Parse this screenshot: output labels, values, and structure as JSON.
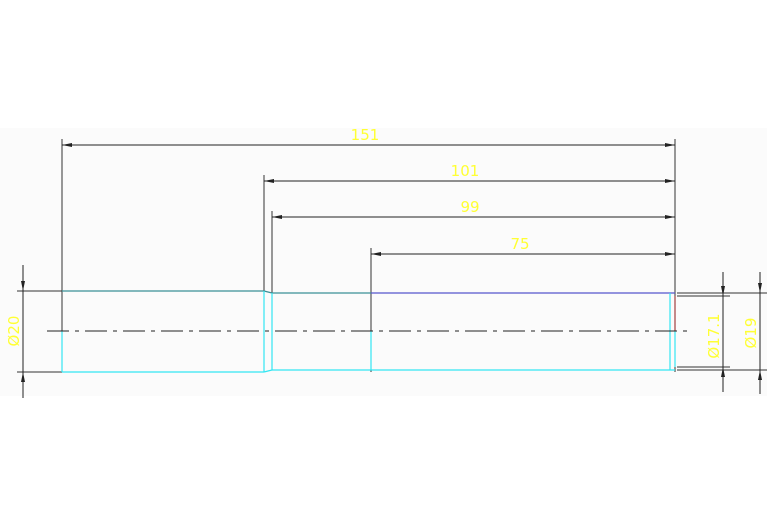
{
  "drawing": {
    "colors": {
      "dimension": "#ffff33",
      "outline": "#33e6f2",
      "line": "#333333",
      "top_edge": "#5555cc"
    },
    "dimensions": {
      "overall_length": "151",
      "length_101": "101",
      "length_99": "99",
      "length_75": "75",
      "dia_20": "Ø20",
      "dia_17_1": "Ø17.1",
      "dia_19": "Ø19"
    }
  }
}
